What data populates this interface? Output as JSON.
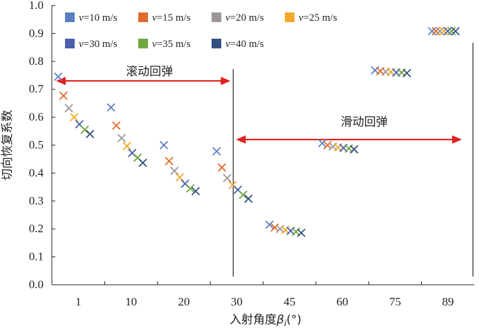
{
  "chart_data": {
    "type": "scatter",
    "title": "",
    "xlabel": "入射角度βi(°)",
    "ylabel": "切向恢复系数",
    "ylim": [
      0,
      1.0
    ],
    "y_ticks": [
      "0.0",
      "0.1",
      "0.2",
      "0.3",
      "0.4",
      "0.5",
      "0.6",
      "0.7",
      "0.8",
      "0.9",
      "1.0"
    ],
    "categories": [
      "1",
      "10",
      "20",
      "30",
      "45",
      "60",
      "75",
      "89"
    ],
    "grid": false,
    "legend_position": "top-left",
    "marker": "x",
    "series": [
      {
        "name": "v=10 m/s",
        "v_label": "v",
        "unit_label": "=10 m/s",
        "color": "#5b7fc0",
        "values": [
          0.745,
          0.635,
          0.5,
          0.478,
          0.215,
          0.507,
          0.768,
          0.908
        ]
      },
      {
        "name": "v=15 m/s",
        "v_label": "v",
        "unit_label": "=15 m/s",
        "color": "#e26a2c",
        "values": [
          0.677,
          0.57,
          0.443,
          0.42,
          0.205,
          0.5,
          0.765,
          0.908
        ]
      },
      {
        "name": "v=20 m/s",
        "v_label": "v",
        "unit_label": "=20 m/s",
        "color": "#9e9696",
        "values": [
          0.632,
          0.525,
          0.408,
          0.382,
          0.2,
          0.495,
          0.763,
          0.908
        ]
      },
      {
        "name": "v=25 m/s",
        "v_label": "v",
        "unit_label": "=25 m/s",
        "color": "#f2a92a",
        "values": [
          0.6,
          0.497,
          0.385,
          0.357,
          0.196,
          0.492,
          0.762,
          0.908
        ]
      },
      {
        "name": "v=30 m/s",
        "v_label": "v",
        "unit_label": "=30 m/s",
        "color": "#4a5fb0",
        "values": [
          0.575,
          0.472,
          0.362,
          0.34,
          0.193,
          0.49,
          0.76,
          0.908
        ]
      },
      {
        "name": "v=35 m/s",
        "v_label": "v",
        "unit_label": "=35 m/s",
        "color": "#6fa63f",
        "values": [
          0.555,
          0.455,
          0.345,
          0.322,
          0.19,
          0.488,
          0.76,
          0.908
        ]
      },
      {
        "name": "v=40 m/s",
        "v_label": "v",
        "unit_label": "=40 m/s",
        "color": "#35507e",
        "values": [
          0.54,
          0.437,
          0.335,
          0.308,
          0.186,
          0.485,
          0.758,
          0.908
        ]
      }
    ],
    "annotations": [
      {
        "text": "滚动回弹",
        "y": 0.73
      },
      {
        "text": "滑动回弹",
        "y": 0.52
      }
    ]
  }
}
